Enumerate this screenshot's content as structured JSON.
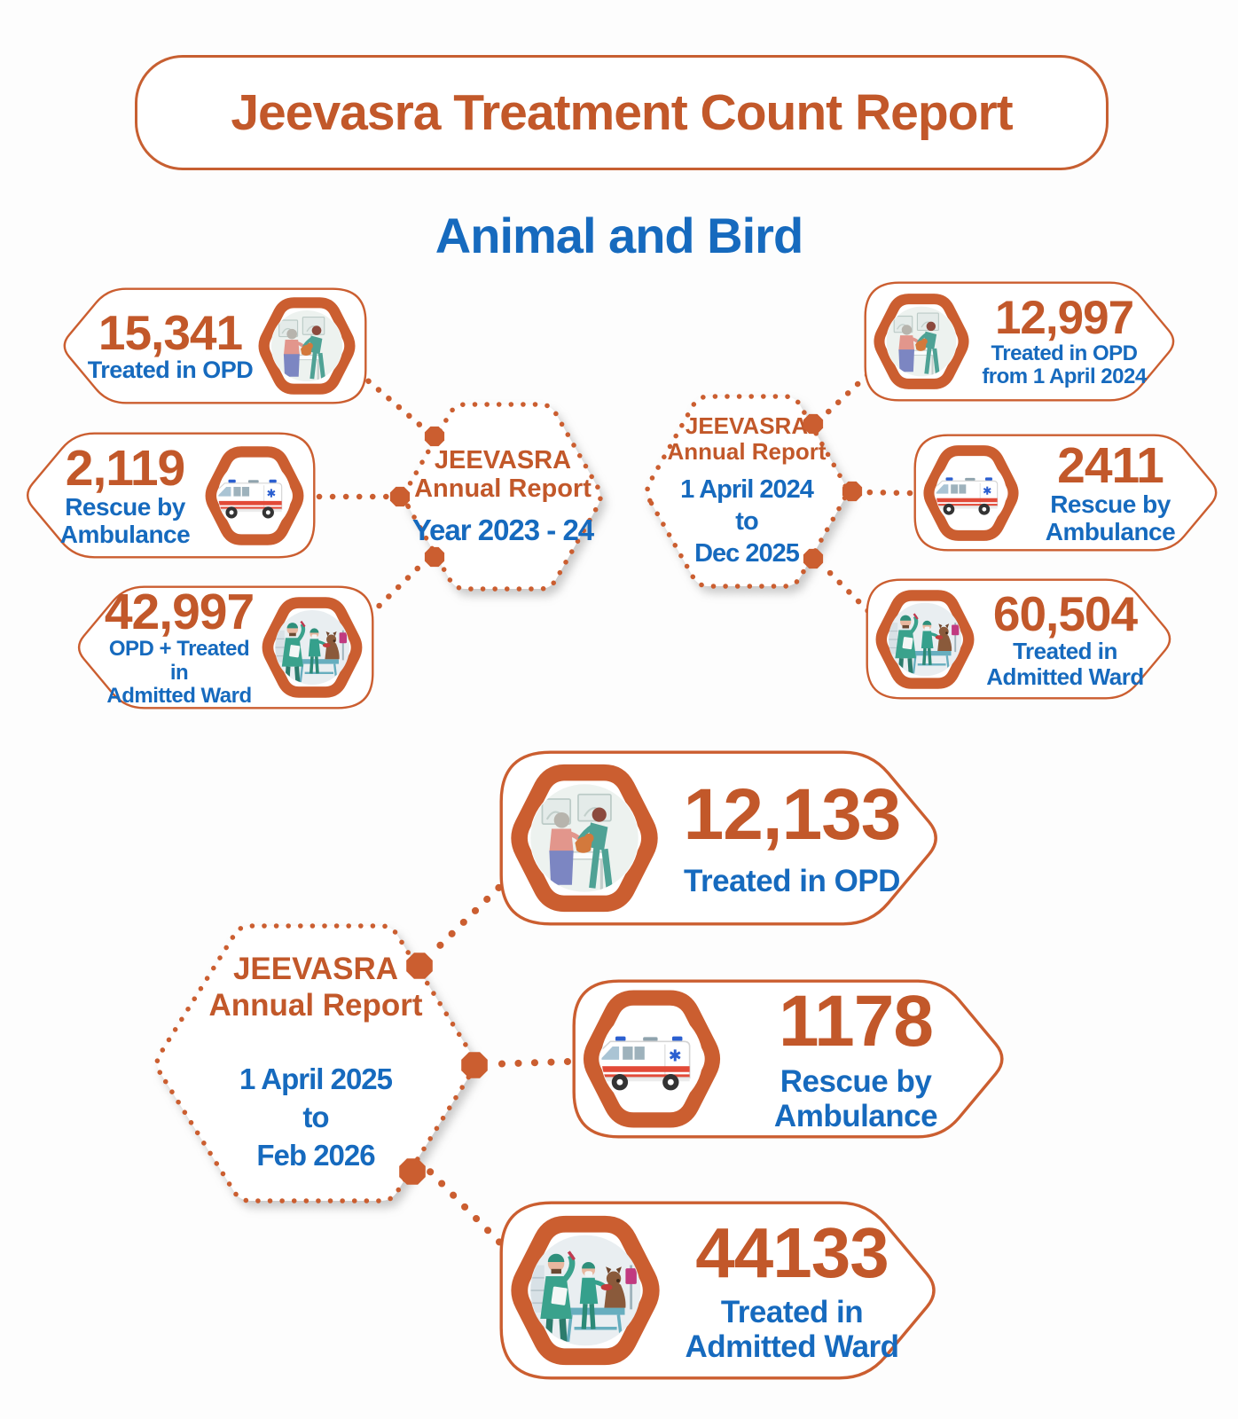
{
  "title": "Jeevasra Treatment Count Report",
  "subtitle": "Animal and Bird",
  "colors": {
    "accent_orange": "#c2582a",
    "ring_orange": "#cb5e30",
    "accent_blue": "#166abe",
    "stripe_red": "#e24a38"
  },
  "clusters": [
    {
      "center": {
        "org": "JEEVASRA",
        "report": "Annual Report",
        "period": "Year 2023 - 24"
      },
      "stats": [
        {
          "value": "15,341",
          "label": "Treated in OPD",
          "icon": "opd-treatment-icon"
        },
        {
          "value": "2,119",
          "label": "Rescue by\nAmbulance",
          "icon": "ambulance-icon"
        },
        {
          "value": "42,997",
          "label": "OPD + Treated in\nAdmitted Ward",
          "icon": "admitted-ward-icon"
        }
      ]
    },
    {
      "center": {
        "org": "JEEVASRA",
        "report": "Annual Report",
        "period": "1 April 2024\nto\nDec 2025"
      },
      "stats": [
        {
          "value": "12,997",
          "label": "Treated in OPD\nfrom 1 April 2024",
          "icon": "opd-treatment-icon"
        },
        {
          "value": "2411",
          "label": "Rescue by\nAmbulance",
          "icon": "ambulance-icon"
        },
        {
          "value": "60,504",
          "label": "Treated in\nAdmitted Ward",
          "icon": "admitted-ward-icon"
        }
      ]
    },
    {
      "center": {
        "org": "JEEVASRA",
        "report": "Annual Report",
        "period": "1 April 2025\nto\nFeb 2026"
      },
      "stats": [
        {
          "value": "12,133",
          "label": "Treated in OPD",
          "icon": "opd-treatment-icon"
        },
        {
          "value": "1178",
          "label": "Rescue by\nAmbulance",
          "icon": "ambulance-icon"
        },
        {
          "value": "44133",
          "label": "Treated in\nAdmitted Ward",
          "icon": "admitted-ward-icon"
        }
      ]
    }
  ]
}
